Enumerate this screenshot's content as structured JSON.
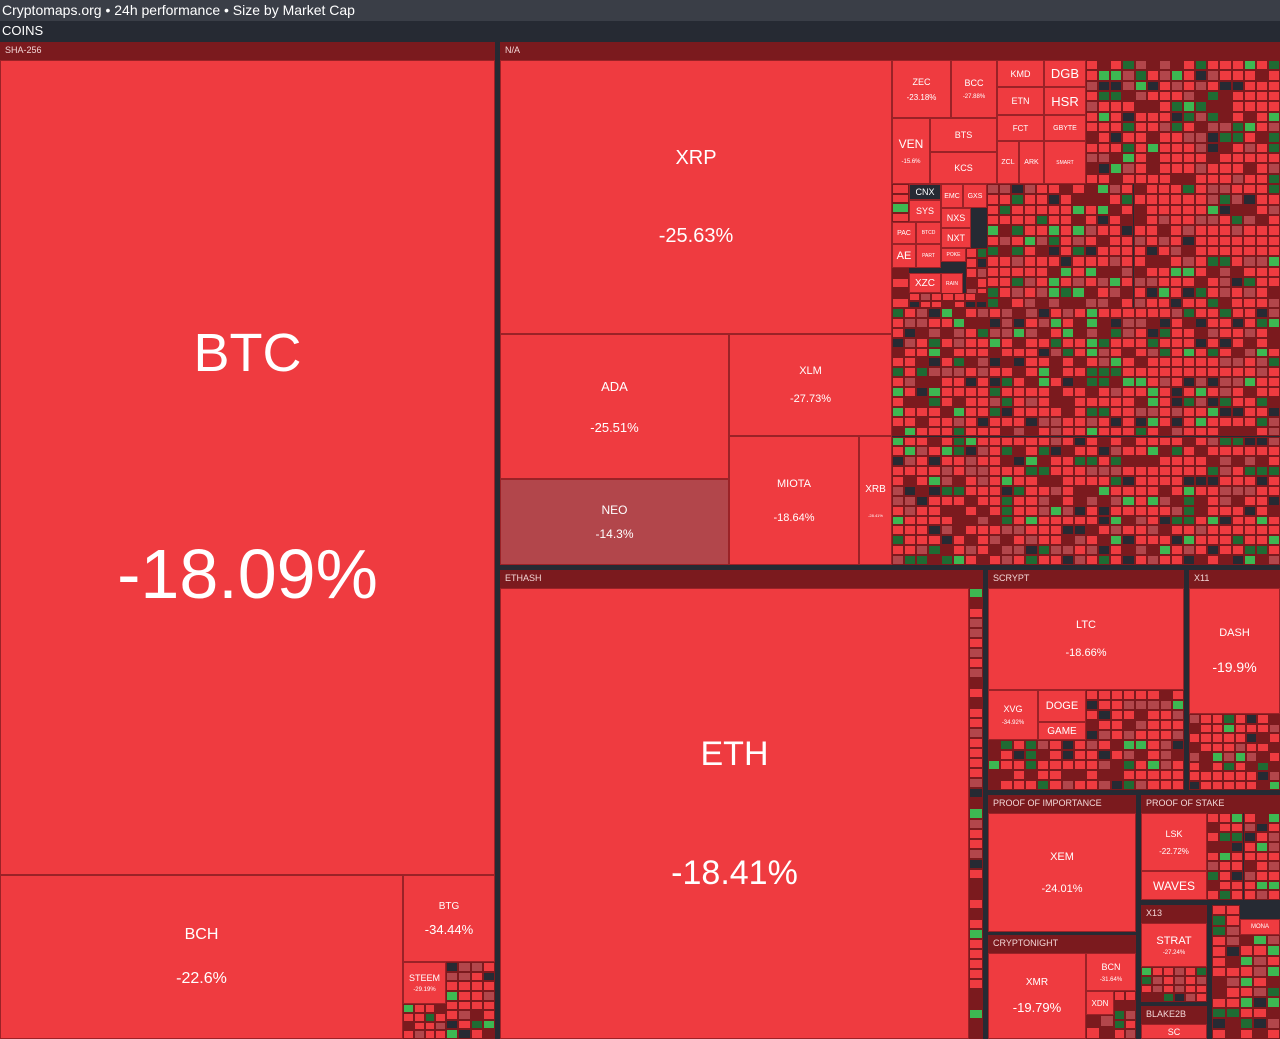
{
  "header": {
    "title": "Cryptomaps.org • 24h performance • Size by Market Cap",
    "section": "COINS"
  },
  "groups": {
    "sha256": "SHA-256",
    "na": "N/A",
    "ethash": "ETHASH",
    "scrypt": "SCRYPT",
    "x11": "X11",
    "poi": "PROOF OF IMPORTANCE",
    "pos": "PROOF OF STAKE",
    "cryptonight": "CRYPTONIGHT",
    "x13": "X13",
    "blake2b": "BLAKE2B"
  },
  "coins": {
    "btc": {
      "symbol": "BTC",
      "change": "-18.09%"
    },
    "bch": {
      "symbol": "BCH",
      "change": "-22.6%"
    },
    "btg": {
      "symbol": "BTG",
      "change": "-34.44%"
    },
    "steem": {
      "symbol": "STEEM",
      "change": "-29.19%"
    },
    "xrp": {
      "symbol": "XRP",
      "change": "-25.63%"
    },
    "ada": {
      "symbol": "ADA",
      "change": "-25.51%"
    },
    "xlm": {
      "symbol": "XLM",
      "change": "-27.73%"
    },
    "neo": {
      "symbol": "NEO",
      "change": "-14.3%"
    },
    "miota": {
      "symbol": "MIOTA",
      "change": "-18.64%"
    },
    "xrb": {
      "symbol": "XRB",
      "change": "-28.41%"
    },
    "eth": {
      "symbol": "ETH",
      "change": "-18.41%"
    },
    "ltc": {
      "symbol": "LTC",
      "change": "-18.66%"
    },
    "dash": {
      "symbol": "DASH",
      "change": "-19.9%"
    },
    "xvg": {
      "symbol": "XVG",
      "change": "-34.92%"
    },
    "doge": {
      "symbol": "DOGE"
    },
    "game": {
      "symbol": "GAME"
    },
    "xem": {
      "symbol": "XEM",
      "change": "-24.01%"
    },
    "lsk": {
      "symbol": "LSK",
      "change": "-22.72%"
    },
    "waves": {
      "symbol": "WAVES"
    },
    "xmr": {
      "symbol": "XMR",
      "change": "-19.79%"
    },
    "bcn": {
      "symbol": "BCN",
      "change": "-31.64%"
    },
    "xdn": {
      "symbol": "XDN"
    },
    "strat": {
      "symbol": "STRAT",
      "change": "-27.24%"
    },
    "sc": {
      "symbol": "SC"
    },
    "mona": {
      "symbol": "MONA"
    },
    "zec": {
      "symbol": "ZEC",
      "change": "-23.18%"
    },
    "bcc": {
      "symbol": "BCC",
      "change": "-27.88%"
    },
    "kmd": {
      "symbol": "KMD"
    },
    "dgb": {
      "symbol": "DGB"
    },
    "etn": {
      "symbol": "ETN"
    },
    "hsr": {
      "symbol": "HSR"
    },
    "ven": {
      "symbol": "VEN",
      "change": "-15.6%"
    },
    "bts": {
      "symbol": "BTS"
    },
    "fct": {
      "symbol": "FCT"
    },
    "gbyte": {
      "symbol": "GBYTE"
    },
    "kcs": {
      "symbol": "KCS"
    },
    "zcl": {
      "symbol": "ZCL"
    },
    "ark": {
      "symbol": "ARK"
    },
    "smart": {
      "symbol": "SMART"
    },
    "cnx": {
      "symbol": "CNX"
    },
    "emc": {
      "symbol": "EMC"
    },
    "gxs": {
      "symbol": "GXS"
    },
    "sys": {
      "symbol": "SYS"
    },
    "nxs": {
      "symbol": "NXS"
    },
    "pac": {
      "symbol": "PAC"
    },
    "btcd": {
      "symbol": "BTCD"
    },
    "nxt": {
      "symbol": "NXT"
    },
    "ae": {
      "symbol": "AE"
    },
    "part": {
      "symbol": "PART"
    },
    "poke": {
      "symbol": "POKE"
    },
    "xzc": {
      "symbol": "XZC"
    },
    "rain": {
      "symbol": "RAIN"
    }
  },
  "colors": {
    "red": "#ef3b40",
    "dark_red": "#7b1a1e",
    "muted_red": "#b2464b",
    "green": "#3db852",
    "dark_green": "#1f6b33",
    "navy": "#262a33"
  }
}
